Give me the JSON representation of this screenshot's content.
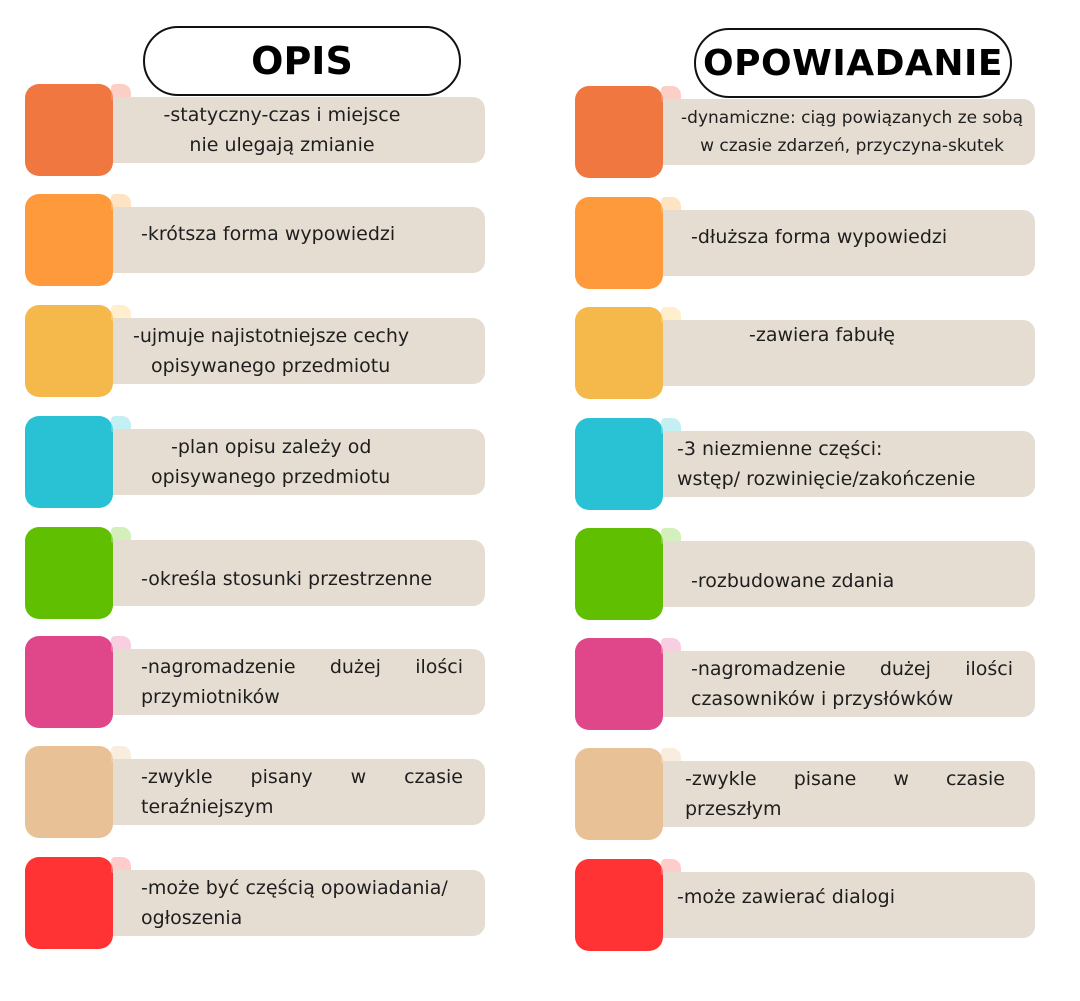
{
  "left": {
    "title": "OPIS",
    "items": [
      {
        "color": "#f07840",
        "tab": "#f8a08e",
        "lines": [
          "-statyczny-czas i miejsce",
          "nie ulegają zmianie"
        ]
      },
      {
        "color": "#ff9a3c",
        "tab": "#ffc98a",
        "lines": [
          "-krótsza forma wypowiedzi"
        ]
      },
      {
        "color": "#f5b84b",
        "tab": "#ffe09a",
        "lines": [
          "-ujmuje najistotniejsze cechy",
          "opisywanego przedmiotu"
        ]
      },
      {
        "color": "#29c1d4",
        "tab": "#8be1e8",
        "lines": [
          "-plan opisu zależy od",
          "opisywanego przedmiotu"
        ]
      },
      {
        "color": "#5fbf00",
        "tab": "#a7e07a",
        "lines": [
          "-określa stosunki przestrzenne"
        ]
      },
      {
        "color": "#e0468a",
        "tab": "#f0a0c4",
        "lines": [
          "-nagromadzenie dużej ilości",
          "przymiotników"
        ]
      },
      {
        "color": "#e8c196",
        "tab": "#f3dcc2",
        "lines": [
          "-zwykle pisany w czasie",
          "teraźniejszym"
        ]
      },
      {
        "color": "#ff3333",
        "tab": "#ff9a9a",
        "lines": [
          "-może być częścią opowiadania/",
          "ogłoszenia"
        ]
      }
    ]
  },
  "right": {
    "title": "OPOWIADANIE",
    "items": [
      {
        "color": "#f07840",
        "tab": "#f8a08e",
        "lines": [
          "-dynamiczne: ciąg powiązanych ze sobą",
          "w czasie zdarzeń, przyczyna-skutek"
        ]
      },
      {
        "color": "#ff9a3c",
        "tab": "#ffc98a",
        "lines": [
          "-dłuższa forma wypowiedzi"
        ]
      },
      {
        "color": "#f5b84b",
        "tab": "#ffe09a",
        "lines": [
          "-zawiera fabułę"
        ]
      },
      {
        "color": "#29c1d4",
        "tab": "#8be1e8",
        "lines": [
          "-3 niezmienne części:",
          "wstęp/ rozwinięcie/zakończenie"
        ]
      },
      {
        "color": "#5fbf00",
        "tab": "#a7e07a",
        "lines": [
          "-rozbudowane zdania"
        ]
      },
      {
        "color": "#e0468a",
        "tab": "#f0a0c4",
        "lines": [
          "-nagromadzenie dużej ilości",
          "czasowników i przysłówków"
        ]
      },
      {
        "color": "#e8c196",
        "tab": "#f3dcc2",
        "lines": [
          "-zwykle pisane w czasie",
          "przeszłym"
        ]
      },
      {
        "color": "#ff3333",
        "tab": "#ff9a9a",
        "lines": [
          "-może zawierać dialogi"
        ]
      }
    ]
  }
}
